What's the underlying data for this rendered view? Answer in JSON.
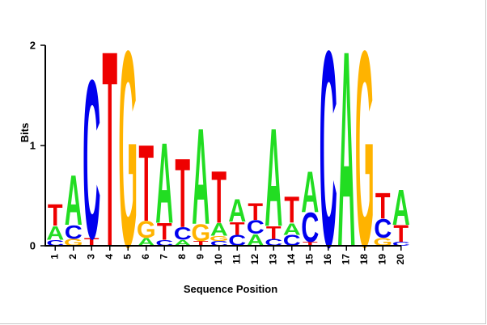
{
  "chart_data": {
    "type": "sequence-logo",
    "title": "",
    "xlabel": "Sequence Position",
    "ylabel": "Bits",
    "ylim": [
      0,
      2
    ],
    "y_ticks": [
      "0",
      "1",
      "2"
    ],
    "x_ticks": [
      "1",
      "2",
      "3",
      "4",
      "5",
      "6",
      "7",
      "8",
      "9",
      "10",
      "11",
      "12",
      "13",
      "14",
      "15",
      "16",
      "17",
      "18",
      "19",
      "20"
    ],
    "grid": false,
    "legend": "none",
    "colors": {
      "A": "#22dd22",
      "C": "#0000ee",
      "G": "#ffb300",
      "T": "#ee0000"
    },
    "positions": [
      {
        "pos": "1",
        "letters": [
          {
            "base": "C",
            "bits": 0.06
          },
          {
            "base": "A",
            "bits": 0.14
          },
          {
            "base": "T",
            "bits": 0.22
          }
        ]
      },
      {
        "pos": "2",
        "letters": [
          {
            "base": "G",
            "bits": 0.07
          },
          {
            "base": "C",
            "bits": 0.14
          },
          {
            "base": "A",
            "bits": 0.51
          }
        ]
      },
      {
        "pos": "3",
        "letters": [
          {
            "base": "T",
            "bits": 0.08
          },
          {
            "base": "C",
            "bits": 1.62
          }
        ]
      },
      {
        "pos": "4",
        "letters": [
          {
            "base": "T",
            "bits": 2.0
          }
        ]
      },
      {
        "pos": "5",
        "letters": [
          {
            "base": "G",
            "bits": 2.0
          }
        ]
      },
      {
        "pos": "6",
        "letters": [
          {
            "base": "A",
            "bits": 0.08
          },
          {
            "base": "G",
            "bits": 0.17
          },
          {
            "base": "T",
            "bits": 0.78
          }
        ]
      },
      {
        "pos": "7",
        "letters": [
          {
            "base": "C",
            "bits": 0.06
          },
          {
            "base": "T",
            "bits": 0.17
          },
          {
            "base": "A",
            "bits": 0.82
          }
        ]
      },
      {
        "pos": "8",
        "letters": [
          {
            "base": "A",
            "bits": 0.06
          },
          {
            "base": "C",
            "bits": 0.13
          },
          {
            "base": "T",
            "bits": 0.7
          }
        ]
      },
      {
        "pos": "9",
        "letters": [
          {
            "base": "T",
            "bits": 0.05
          },
          {
            "base": "G",
            "bits": 0.17
          },
          {
            "base": "A",
            "bits": 0.98
          }
        ]
      },
      {
        "pos": "10",
        "letters": [
          {
            "base": "C",
            "bits": 0.05
          },
          {
            "base": "G",
            "bits": 0.05
          },
          {
            "base": "A",
            "bits": 0.13
          },
          {
            "base": "T",
            "bits": 0.53
          }
        ]
      },
      {
        "pos": "11",
        "letters": [
          {
            "base": "C",
            "bits": 0.11
          },
          {
            "base": "T",
            "bits": 0.13
          },
          {
            "base": "A",
            "bits": 0.23
          }
        ]
      },
      {
        "pos": "12",
        "letters": [
          {
            "base": "A",
            "bits": 0.12
          },
          {
            "base": "C",
            "bits": 0.14
          },
          {
            "base": "T",
            "bits": 0.17
          }
        ]
      },
      {
        "pos": "13",
        "letters": [
          {
            "base": "C",
            "bits": 0.07
          },
          {
            "base": "T",
            "bits": 0.13
          },
          {
            "base": "A",
            "bits": 1.0
          }
        ]
      },
      {
        "pos": "14",
        "letters": [
          {
            "base": "C",
            "bits": 0.11
          },
          {
            "base": "A",
            "bits": 0.12
          },
          {
            "base": "T",
            "bits": 0.27
          }
        ]
      },
      {
        "pos": "15",
        "letters": [
          {
            "base": "T",
            "bits": 0.04
          },
          {
            "base": "C",
            "bits": 0.3
          },
          {
            "base": "A",
            "bits": 0.42
          }
        ]
      },
      {
        "pos": "16",
        "letters": [
          {
            "base": "C",
            "bits": 2.0
          }
        ]
      },
      {
        "pos": "17",
        "letters": [
          {
            "base": "A",
            "bits": 2.0
          }
        ]
      },
      {
        "pos": "18",
        "letters": [
          {
            "base": "G",
            "bits": 2.0
          }
        ]
      },
      {
        "pos": "19",
        "letters": [
          {
            "base": "G",
            "bits": 0.08
          },
          {
            "base": "C",
            "bits": 0.19
          },
          {
            "base": "T",
            "bits": 0.26
          }
        ]
      },
      {
        "pos": "20",
        "letters": [
          {
            "base": "C",
            "bits": 0.04
          },
          {
            "base": "T",
            "bits": 0.17
          },
          {
            "base": "A",
            "bits": 0.36
          }
        ]
      }
    ]
  }
}
